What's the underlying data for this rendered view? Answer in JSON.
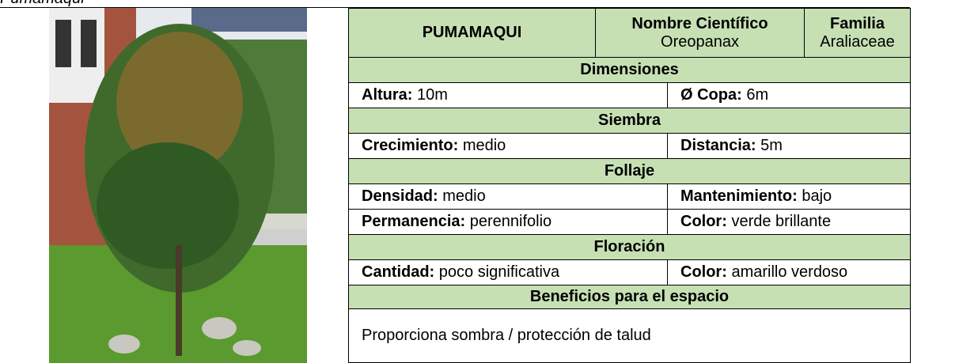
{
  "caption": "Pumamaqui",
  "table": {
    "name": "PUMAMAQUI",
    "scientific_name": {
      "label": "Nombre Científico",
      "value": "Oreopanax"
    },
    "family": {
      "label": "Familia",
      "value": "Araliaceae"
    },
    "sections": [
      {
        "title": "Dimensiones",
        "rows": [
          [
            {
              "label": "Altura:",
              "value": "10m"
            },
            {
              "label": "Ø Copa:",
              "value": "6m"
            }
          ]
        ]
      },
      {
        "title": "Siembra",
        "rows": [
          [
            {
              "label": "Crecimiento:",
              "value": "medio"
            },
            {
              "label": "Distancia:",
              "value": "5m"
            }
          ]
        ]
      },
      {
        "title": "Follaje",
        "rows": [
          [
            {
              "label": "Densidad:",
              "value": "medio"
            },
            {
              "label": "Mantenimiento:",
              "value": "bajo"
            }
          ],
          [
            {
              "label": "Permanencia:",
              "value": "perennifolio"
            },
            {
              "label": "Color:",
              "value": "verde brillante"
            }
          ]
        ]
      },
      {
        "title": "Floración",
        "rows": [
          [
            {
              "label": "Cantidad:",
              "value": "poco significativa"
            },
            {
              "label": "Color:",
              "value": "amarillo verdoso"
            }
          ]
        ]
      }
    ],
    "benefits": {
      "title": "Beneficios para el espacio",
      "text": "Proporciona sombra / protección de talud"
    }
  }
}
